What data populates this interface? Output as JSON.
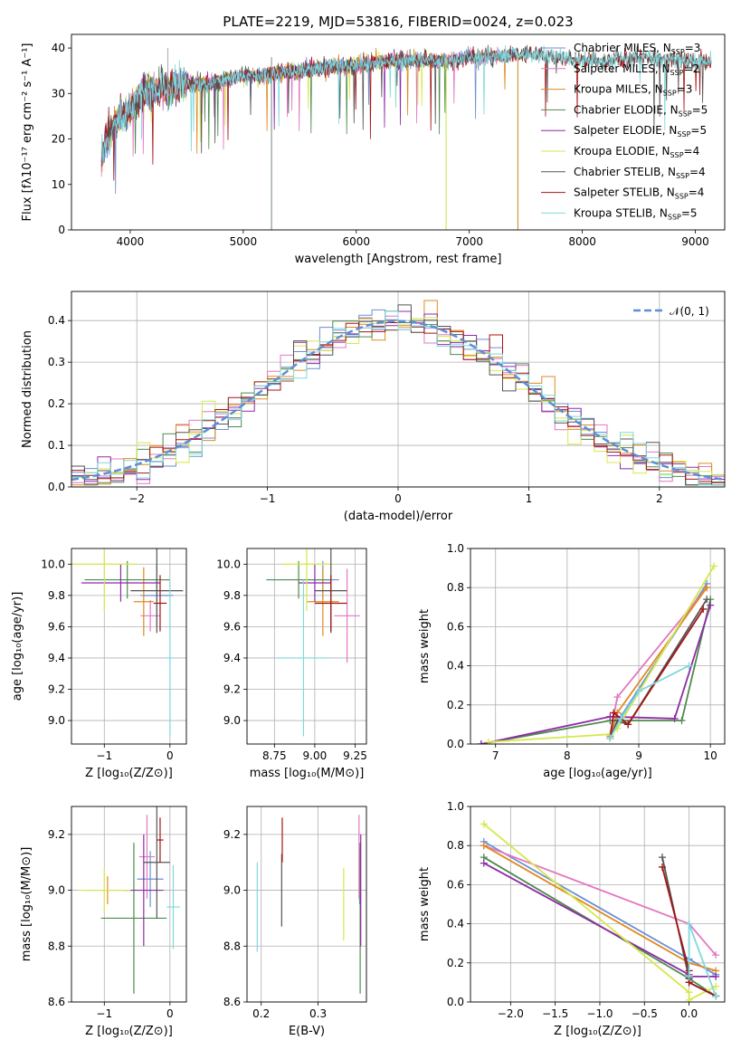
{
  "title": "PLATE=2219, MJD=53816, FIBERID=0024, z=0.023",
  "colors": {
    "Chabrier MILES": "#6a8fd6",
    "Salpeter MILES": "#e377c2",
    "Kroupa MILES": "#e08a1e",
    "Chabrier ELODIE": "#4e8a4e",
    "Salpeter ELODIE": "#8e2ba6",
    "Kroupa ELODIE": "#d6e84a",
    "Chabrier STELIB": "#555555",
    "Salpeter STELIB": "#a51414",
    "Kroupa STELIB": "#7fd8dc",
    "normal": "#5b8fd6"
  },
  "chart_data": [
    {
      "type": "line",
      "panel": "spectrum",
      "title": "PLATE=2219, MJD=53816, FIBERID=0024, z=0.023",
      "xlabel": "wavelength [Angstrom, rest frame]",
      "ylabel": "Flux [fλ10⁻¹⁷ erg cm⁻² s⁻¹ A⁻¹]",
      "xlim": [
        3480,
        9260
      ],
      "ylim": [
        0,
        43
      ],
      "xticks": [
        4000,
        5000,
        6000,
        7000,
        8000,
        9000
      ],
      "yticks": [
        0,
        10,
        20,
        30,
        40
      ],
      "legend_position": "right",
      "legend": [
        {
          "label": "Chabrier MILES, N",
          "sub": "SSP",
          "n": "=3"
        },
        {
          "label": "Salpeter MILES, N",
          "sub": "SSP",
          "n": "=2"
        },
        {
          "label": "Kroupa MILES, N",
          "sub": "SSP",
          "n": "=3"
        },
        {
          "label": "Chabrier ELODIE, N",
          "sub": "SSP",
          "n": "=5"
        },
        {
          "label": "Salpeter ELODIE, N",
          "sub": "SSP",
          "n": "=5"
        },
        {
          "label": "Kroupa ELODIE, N",
          "sub": "SSP",
          "n": "=4"
        },
        {
          "label": "Chabrier STELIB, N",
          "sub": "SSP",
          "n": "=4"
        },
        {
          "label": "Salpeter STELIB, N",
          "sub": "SSP",
          "n": "=4"
        },
        {
          "label": "Kroupa STELIB, N",
          "sub": "SSP",
          "n": "=5"
        }
      ],
      "continuum": {
        "x": [
          3740,
          3800,
          3900,
          4000,
          4100,
          4300,
          4500,
          4700,
          5000,
          5200,
          5500,
          5800,
          6000,
          6200,
          6500,
          6800,
          7000,
          7200,
          7400,
          7600,
          7800,
          8000,
          8200,
          8500,
          8800,
          9000,
          9100
        ],
        "y": [
          15,
          20,
          25,
          26,
          30,
          31,
          32,
          32,
          34,
          34,
          35,
          36,
          36,
          37,
          37.5,
          37,
          38,
          38,
          38.5,
          38.5,
          38,
          37,
          37,
          38,
          37.5,
          37,
          37
        ]
      },
      "ends": {
        "Chabrier MILES": 7420,
        "Salpeter MILES": 7420,
        "Kroupa MILES": 7420,
        "Chabrier ELODIE": 6800,
        "Salpeter ELODIE": 6800,
        "Kroupa ELODIE": 6800,
        "Chabrier STELIB": 9140,
        "Salpeter STELIB": 9140,
        "Kroupa STELIB": 9140
      }
    },
    {
      "type": "histogram",
      "panel": "residuals",
      "xlabel": "(data-model)/error",
      "ylabel": "Normed distribution",
      "xlim": [
        -2.5,
        2.5
      ],
      "ylim": [
        0,
        0.47
      ],
      "xticks": [
        -2,
        -1,
        0,
        1,
        2
      ],
      "yticks": [
        0.0,
        0.1,
        0.2,
        0.3,
        0.4
      ],
      "legend_position": "upper right",
      "legend": [
        "𝒩(0, 1)"
      ],
      "bins": 50
    },
    {
      "type": "scatter",
      "panel": "age-vs-Z",
      "xlabel": "Z [log₁₀(Z/Z⊙)]",
      "ylabel": "age  [log₁₀(age/yr)]",
      "xlim": [
        -1.5,
        0.25
      ],
      "ylim": [
        8.85,
        10.1
      ],
      "xticks": [
        -1,
        0
      ],
      "yticks": [
        9.0,
        9.2,
        9.4,
        9.6,
        9.8,
        10.0
      ],
      "points": [
        {
          "s": "Chabrier MILES",
          "x": -0.2,
          "y": 9.8,
          "ex": 0.25,
          "ey": 0.2
        },
        {
          "s": "Salpeter MILES",
          "x": -0.3,
          "y": 9.67,
          "ex": 0.15,
          "ey": 0.1
        },
        {
          "s": "Kroupa MILES",
          "x": -0.4,
          "y": 9.76,
          "ex": 0.15,
          "ey": 0.22
        },
        {
          "s": "Chabrier ELODIE",
          "x": -0.65,
          "y": 9.9,
          "ex": 0.65,
          "ey": 0.12
        },
        {
          "s": "Salpeter ELODIE",
          "x": -0.75,
          "y": 9.88,
          "ex": 0.6,
          "ey": 0.12
        },
        {
          "s": "Kroupa ELODIE",
          "x": -1.0,
          "y": 10.0,
          "ex": 0.5,
          "ey": 0.3
        },
        {
          "s": "Chabrier STELIB",
          "x": -0.2,
          "y": 9.83,
          "ex": 0.4,
          "ey": 0.27
        },
        {
          "s": "Salpeter STELIB",
          "x": -0.15,
          "y": 9.75,
          "ex": 0.1,
          "ey": 0.18
        },
        {
          "s": "Kroupa STELIB",
          "x": 0.0,
          "y": 9.4,
          "ex": 0.05,
          "ey": 0.5
        }
      ]
    },
    {
      "type": "scatter",
      "panel": "age-vs-mass",
      "xlabel": "mass [log₁₀(M/M⊙)]",
      "ylabel": "",
      "xlim": [
        8.58,
        9.32
      ],
      "ylim": [
        8.85,
        10.1
      ],
      "xticks": [
        8.75,
        9.0,
        9.25
      ],
      "yticks": [
        9.0,
        9.2,
        9.4,
        9.6,
        9.8,
        10.0
      ],
      "points": [
        {
          "s": "Chabrier MILES",
          "x": 9.05,
          "y": 9.9,
          "ex": 0.1,
          "ey": 0.12
        },
        {
          "s": "Salpeter MILES",
          "x": 9.2,
          "y": 9.67,
          "ex": 0.08,
          "ey": 0.3
        },
        {
          "s": "Kroupa MILES",
          "x": 9.05,
          "y": 9.76,
          "ex": 0.1,
          "ey": 0.22
        },
        {
          "s": "Chabrier ELODIE",
          "x": 8.9,
          "y": 9.9,
          "ex": 0.2,
          "ey": 0.12
        },
        {
          "s": "Salpeter ELODIE",
          "x": 9.0,
          "y": 9.88,
          "ex": 0.1,
          "ey": 0.12
        },
        {
          "s": "Kroupa ELODIE",
          "x": 8.95,
          "y": 10.0,
          "ex": 0.15,
          "ey": 0.3
        },
        {
          "s": "Chabrier STELIB",
          "x": 9.1,
          "y": 9.83,
          "ex": 0.1,
          "ey": 0.27
        },
        {
          "s": "Salpeter STELIB",
          "x": 9.1,
          "y": 9.75,
          "ex": 0.1,
          "ey": 0.18
        },
        {
          "s": "Kroupa STELIB",
          "x": 8.93,
          "y": 9.4,
          "ex": 0.17,
          "ey": 0.5
        }
      ]
    },
    {
      "type": "line",
      "panel": "weight-vs-age",
      "xlabel": "age  [log₁₀(age/yr)]",
      "ylabel": "mass weight",
      "xlim": [
        6.65,
        10.2
      ],
      "ylim": [
        0,
        1.0
      ],
      "xticks": [
        7,
        8,
        9,
        10
      ],
      "yticks": [
        0.0,
        0.2,
        0.4,
        0.6,
        0.8,
        1.0
      ],
      "series": [
        {
          "s": "Chabrier MILES",
          "x": [
            8.6,
            8.75,
            9.95
          ],
          "y": [
            0.05,
            0.14,
            0.82
          ]
        },
        {
          "s": "Salpeter MILES",
          "x": [
            8.6,
            8.7,
            9.95
          ],
          "y": [
            0.05,
            0.24,
            0.8
          ]
        },
        {
          "s": "Kroupa MILES",
          "x": [
            8.6,
            8.7,
            9.95
          ],
          "y": [
            0.04,
            0.16,
            0.8
          ]
        },
        {
          "s": "Chabrier ELODIE",
          "x": [
            6.8,
            8.6,
            8.75,
            9.6,
            10.0
          ],
          "y": [
            0.0,
            0.12,
            0.12,
            0.12,
            0.74
          ]
        },
        {
          "s": "Salpeter ELODIE",
          "x": [
            6.8,
            8.6,
            9.5,
            10.0
          ],
          "y": [
            0.0,
            0.14,
            0.13,
            0.71
          ]
        },
        {
          "s": "Kroupa ELODIE",
          "x": [
            6.9,
            8.6,
            8.7,
            10.05
          ],
          "y": [
            0.01,
            0.05,
            0.08,
            0.91
          ]
        },
        {
          "s": "Chabrier STELIB",
          "x": [
            8.6,
            8.7,
            8.85,
            9.95
          ],
          "y": [
            0.03,
            0.12,
            0.1,
            0.74
          ]
        },
        {
          "s": "Salpeter STELIB",
          "x": [
            8.6,
            8.65,
            8.85,
            9.9
          ],
          "y": [
            0.03,
            0.16,
            0.1,
            0.69
          ]
        },
        {
          "s": "Kroupa STELIB",
          "x": [
            8.6,
            8.75,
            9.0,
            9.7
          ],
          "y": [
            0.03,
            0.13,
            0.27,
            0.4
          ]
        }
      ]
    },
    {
      "type": "scatter",
      "panel": "mass-vs-Z",
      "xlabel": "Z [log₁₀(Z/Z⊙)]",
      "ylabel": "mass [log₁₀(M/M⊙)]",
      "xlim": [
        -1.5,
        0.25
      ],
      "ylim": [
        8.6,
        9.3
      ],
      "xticks": [
        -1,
        0
      ],
      "yticks": [
        8.6,
        8.8,
        9.0,
        9.2
      ],
      "points": [
        {
          "s": "Chabrier MILES",
          "x": -0.3,
          "y": 9.04,
          "ex": 0.2,
          "ey": 0.1
        },
        {
          "s": "Salpeter MILES",
          "x": -0.35,
          "y": 9.12,
          "ex": 0.12,
          "ey": 0.15
        },
        {
          "s": "Kroupa MILES",
          "x": -0.95,
          "y": 9.0,
          "ex": 0.35,
          "ey": 0.05
        },
        {
          "s": "Chabrier ELODIE",
          "x": -0.55,
          "y": 8.9,
          "ex": 0.5,
          "ey": 0.27
        },
        {
          "s": "Salpeter ELODIE",
          "x": -0.4,
          "y": 9.0,
          "ex": 0.3,
          "ey": 0.2
        },
        {
          "s": "Kroupa ELODIE",
          "x": -1.0,
          "y": 9.0,
          "ex": 0.4,
          "ey": 0.08
        },
        {
          "s": "Chabrier STELIB",
          "x": -0.2,
          "y": 9.1,
          "ex": 0.2,
          "ey": 0.2
        },
        {
          "s": "Salpeter STELIB",
          "x": -0.15,
          "y": 9.18,
          "ex": 0.05,
          "ey": 0.08
        },
        {
          "s": "Kroupa STELIB",
          "x": 0.05,
          "y": 8.94,
          "ex": 0.1,
          "ey": 0.15
        }
      ]
    },
    {
      "type": "scatter",
      "panel": "mass-vs-EBV",
      "xlabel": "E(B-V)",
      "ylabel": "",
      "xlim": [
        0.175,
        0.385
      ],
      "ylim": [
        8.6,
        9.3
      ],
      "xticks": [
        0.2,
        0.3
      ],
      "yticks": [
        8.6,
        8.8,
        9.0,
        9.2
      ],
      "points": [
        {
          "s": "Chabrier MILES",
          "x": 0.373,
          "y": 9.05,
          "ex": 0,
          "ey": 0.1
        },
        {
          "s": "Salpeter MILES",
          "x": 0.372,
          "y": 9.12,
          "ex": 0,
          "ey": 0.15
        },
        {
          "s": "Kroupa MILES",
          "x": 0.374,
          "y": 9.0,
          "ex": 0,
          "ey": 0.05
        },
        {
          "s": "Chabrier ELODIE",
          "x": 0.374,
          "y": 8.9,
          "ex": 0,
          "ey": 0.27
        },
        {
          "s": "Salpeter ELODIE",
          "x": 0.375,
          "y": 9.0,
          "ex": 0,
          "ey": 0.2
        },
        {
          "s": "Kroupa ELODIE",
          "x": 0.345,
          "y": 8.95,
          "ex": 0,
          "ey": 0.13
        },
        {
          "s": "Chabrier STELIB",
          "x": 0.236,
          "y": 9.0,
          "ex": 0,
          "ey": 0.13
        },
        {
          "s": "Salpeter STELIB",
          "x": 0.237,
          "y": 9.18,
          "ex": 0,
          "ey": 0.08
        },
        {
          "s": "Kroupa STELIB",
          "x": 0.193,
          "y": 8.94,
          "ex": 0,
          "ey": 0.16
        }
      ]
    },
    {
      "type": "line",
      "panel": "weight-vs-Z",
      "xlabel": "Z [log₁₀(Z/Z⊙)]",
      "ylabel": "mass weight",
      "xlim": [
        -2.45,
        0.4
      ],
      "ylim": [
        0,
        1.0
      ],
      "xticks": [
        -2.0,
        -1.5,
        -1.0,
        -0.5,
        0.0
      ],
      "yticks": [
        0.0,
        0.2,
        0.4,
        0.6,
        0.8,
        1.0
      ],
      "series": [
        {
          "s": "Chabrier MILES",
          "x": [
            -2.3,
            0.0,
            0.3
          ],
          "y": [
            0.82,
            0.22,
            0.14
          ]
        },
        {
          "s": "Salpeter MILES",
          "x": [
            -2.3,
            0.0,
            0.3
          ],
          "y": [
            0.8,
            0.4,
            0.24
          ]
        },
        {
          "s": "Kroupa MILES",
          "x": [
            -2.3,
            0.0,
            0.3
          ],
          "y": [
            0.8,
            0.2,
            0.16
          ]
        },
        {
          "s": "Chabrier ELODIE",
          "x": [
            -2.3,
            0.0,
            0.0,
            0.3
          ],
          "y": [
            0.74,
            0.12,
            0.12,
            0.03
          ]
        },
        {
          "s": "Salpeter ELODIE",
          "x": [
            -2.3,
            0.0,
            0.0,
            0.3
          ],
          "y": [
            0.71,
            0.14,
            0.13,
            0.13
          ]
        },
        {
          "s": "Kroupa ELODIE",
          "x": [
            -2.3,
            0.0,
            0.0,
            0.3
          ],
          "y": [
            0.91,
            0.05,
            0.01,
            0.08
          ]
        },
        {
          "s": "Chabrier STELIB",
          "x": [
            -0.3,
            0.0,
            0.0,
            0.3
          ],
          "y": [
            0.74,
            0.12,
            0.1,
            0.03
          ]
        },
        {
          "s": "Salpeter STELIB",
          "x": [
            -0.3,
            0.0,
            0.0,
            0.3
          ],
          "y": [
            0.69,
            0.16,
            0.1,
            0.03
          ]
        },
        {
          "s": "Kroupa STELIB",
          "x": [
            0.0,
            0.0,
            0.3
          ],
          "y": [
            0.13,
            0.4,
            0.03
          ]
        }
      ]
    }
  ]
}
